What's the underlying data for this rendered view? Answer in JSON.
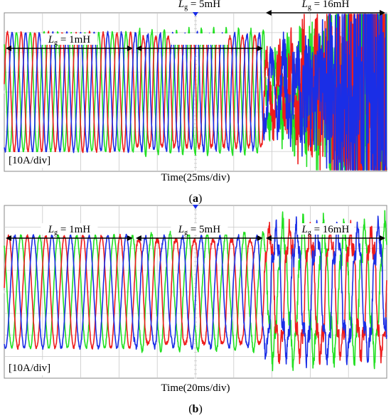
{
  "figure": {
    "colors": {
      "phase_a": "#ee1c1c",
      "phase_b": "#1a2ee6",
      "phase_c": "#22e022",
      "grid": "#c8c8c8",
      "frame": "#8a8a8a",
      "marker": "#1a2ee6"
    },
    "panels": [
      {
        "id": "a",
        "caption": "(a)",
        "time_label": "Time(25ms/div)",
        "scale_label": "[10A/div]",
        "time_per_div_ms": 25,
        "current_per_div_A": 10,
        "segments": [
          {
            "label_italic": "L",
            "label_sub": "g",
            "label_rest": " = 1mH",
            "inductance_mH": 1
          },
          {
            "label_italic": "L",
            "label_sub": "g",
            "label_rest": " = 5mH",
            "inductance_mH": 5
          },
          {
            "label_italic": "L",
            "label_sub": "g",
            "label_rest": " = 16mH",
            "inductance_mH": 16
          }
        ]
      },
      {
        "id": "b",
        "caption": "(b)",
        "time_label": "Time(20ms/div)",
        "scale_label": "[10A/div]",
        "time_per_div_ms": 20,
        "current_per_div_A": 10,
        "segments": [
          {
            "label_italic": "L",
            "label_sub": "g",
            "label_rest": " = 1mH",
            "inductance_mH": 1
          },
          {
            "label_italic": "L",
            "label_sub": "g",
            "label_rest": " = 5mH",
            "inductance_mH": 5
          },
          {
            "label_italic": "L",
            "label_sub": "g",
            "label_rest": " = 16mH",
            "inductance_mH": 16
          }
        ]
      }
    ]
  },
  "chart_data": [
    {
      "type": "line",
      "title": "",
      "xlabel": "Time(25ms/div)",
      "ylabel": "[10A/div]",
      "grid": true,
      "divisions_x": 10,
      "divisions_y": 8,
      "series": [
        {
          "phase": "a",
          "color": "#ee1c1c"
        },
        {
          "phase": "b",
          "color": "#1a2ee6"
        },
        {
          "phase": "c",
          "color": "#22e022"
        }
      ],
      "regions": [
        {
          "label": "Lg = 1mH",
          "x_div": [
            0,
            3.4
          ],
          "cycles": 9.5,
          "amplitude_div": 3,
          "behavior": "stable sinusoid"
        },
        {
          "label": "Lg = 5mH",
          "x_div": [
            3.4,
            6.8
          ],
          "cycles": 10.5,
          "amplitude_div": 3,
          "behavior": "slightly distorted"
        },
        {
          "label": "Lg = 16mH",
          "x_div": [
            6.8,
            10
          ],
          "amplitude_div": 4,
          "behavior": "unstable, saturating oscillation"
        }
      ]
    },
    {
      "type": "line",
      "title": "",
      "xlabel": "Time(20ms/div)",
      "ylabel": "[10A/div]",
      "grid": true,
      "divisions_x": 10,
      "divisions_y": 8,
      "series": [
        {
          "phase": "a",
          "color": "#ee1c1c"
        },
        {
          "phase": "b",
          "color": "#1a2ee6"
        },
        {
          "phase": "c",
          "color": "#22e022"
        }
      ],
      "regions": [
        {
          "label": "Lg = 1mH",
          "x_div": [
            0,
            3.4
          ],
          "cycles": 7,
          "amplitude_div": 2.6,
          "behavior": "stable sinusoid"
        },
        {
          "label": "Lg = 5mH",
          "x_div": [
            3.4,
            6.8
          ],
          "cycles": 7,
          "amplitude_div": 2.6,
          "behavior": "stable, slight distortion"
        },
        {
          "label": "Lg = 16mH",
          "x_div": [
            6.8,
            10
          ],
          "cycles": 6,
          "amplitude_div": 2.8,
          "behavior": "distorted but bounded"
        }
      ]
    }
  ]
}
